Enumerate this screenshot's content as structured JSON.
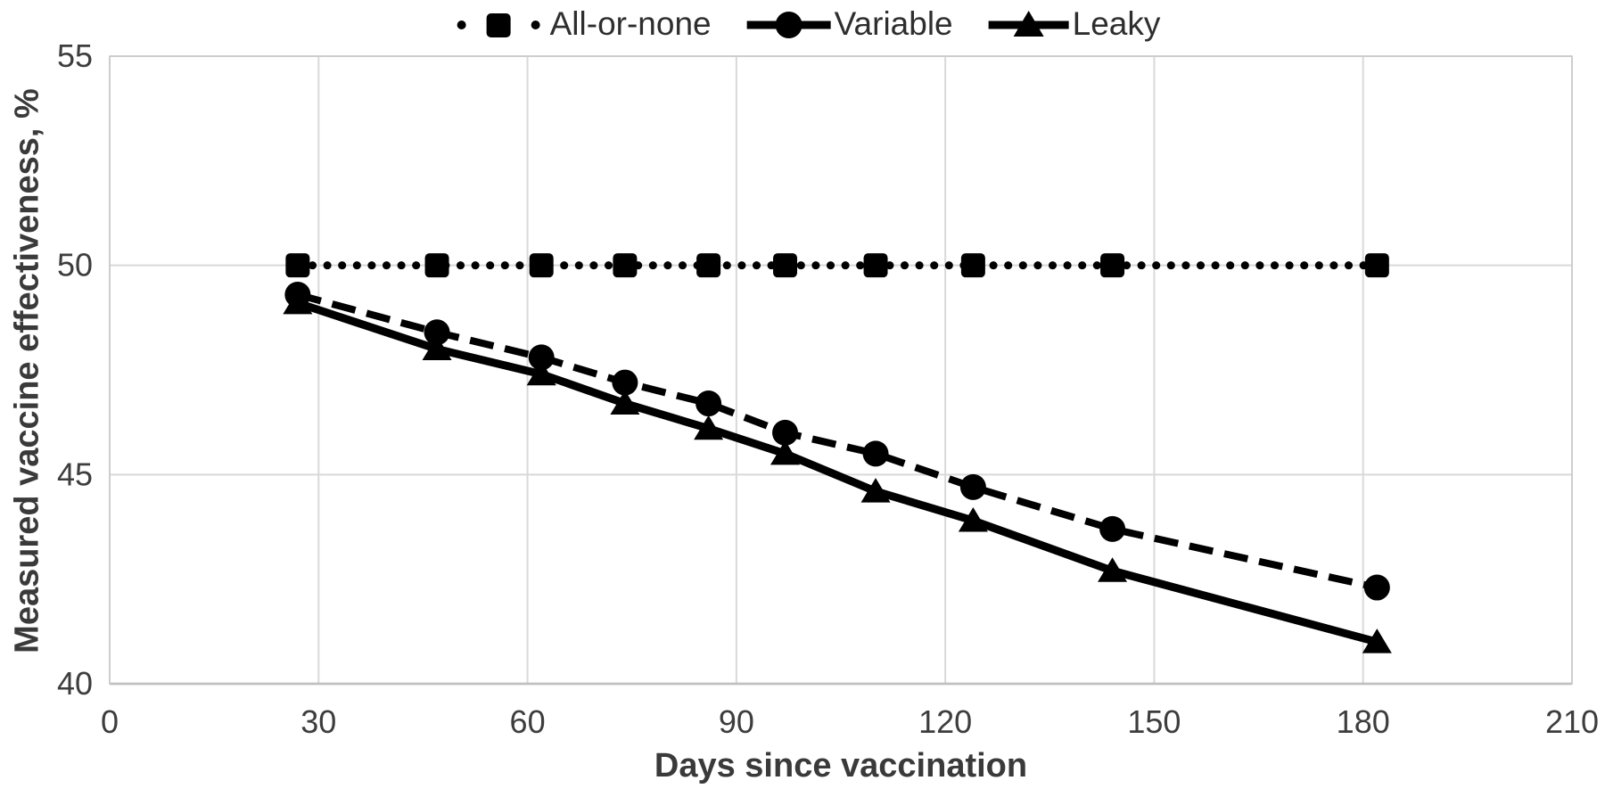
{
  "chart_data": {
    "type": "line",
    "title": "",
    "xlabel": "Days since vaccination",
    "ylabel": "Measured vaccine effectiveness, %",
    "xlim": [
      0,
      210
    ],
    "ylim": [
      40,
      55
    ],
    "xticks": [
      0,
      30,
      60,
      90,
      120,
      150,
      180,
      210
    ],
    "yticks": [
      40,
      45,
      50,
      55
    ],
    "grid": true,
    "legend_position": "top-center",
    "x": [
      27,
      47,
      62,
      74,
      86,
      97,
      110,
      124,
      144,
      182
    ],
    "series": [
      {
        "name": "All-or-none",
        "marker": "square",
        "line_style": "dotted",
        "color": "#000000",
        "values": [
          50,
          50,
          50,
          50,
          50,
          50,
          50,
          50,
          50,
          50
        ]
      },
      {
        "name": "Variable",
        "marker": "circle",
        "line_style": "dashed",
        "color": "#000000",
        "values": [
          49.3,
          48.4,
          47.8,
          47.2,
          46.7,
          46.0,
          45.5,
          44.7,
          43.7,
          42.3
        ]
      },
      {
        "name": "Leaky",
        "marker": "triangle",
        "line_style": "solid",
        "color": "#000000",
        "values": [
          49.1,
          48.0,
          47.4,
          46.7,
          46.1,
          45.5,
          44.6,
          43.9,
          42.7,
          41.0
        ]
      }
    ],
    "colors": {
      "series": "#000000",
      "grid": "#d9d9d9",
      "axis_line": "#a6a6a6",
      "border": "#c9c9c9",
      "tick_label": "#3d3d3d",
      "axis_title": "#3a3a3a",
      "legend_text": "#2e2e2e"
    }
  }
}
